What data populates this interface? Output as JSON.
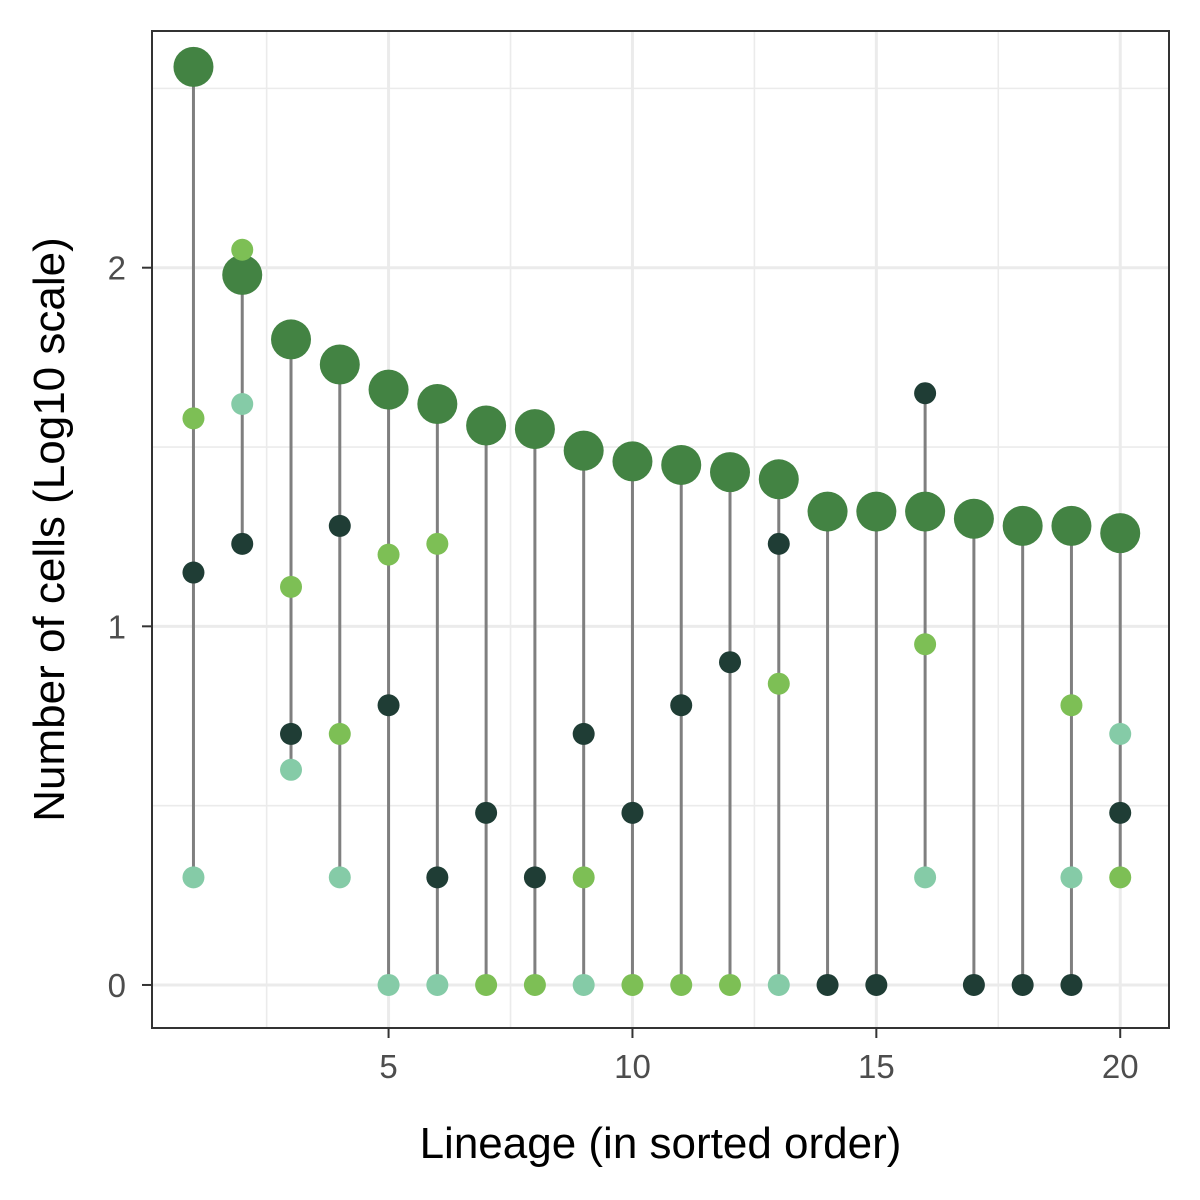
{
  "chart_data": {
    "type": "scatter",
    "xlabel": "Lineage (in sorted order)",
    "ylabel": "Number of cells (Log10 scale)",
    "xlim": [
      0.15,
      21.0
    ],
    "ylim": [
      -0.12,
      2.66
    ],
    "x_ticks": [
      5,
      10,
      15,
      20
    ],
    "y_ticks": [
      0,
      1,
      2
    ],
    "grid": true,
    "legend": "none",
    "x": [
      1,
      2,
      3,
      4,
      5,
      6,
      7,
      8,
      9,
      10,
      11,
      12,
      13,
      14,
      15,
      16,
      17,
      18,
      19,
      20
    ],
    "series": [
      {
        "role": "total",
        "color": "#438343",
        "values": [
          2.56,
          1.98,
          1.8,
          1.73,
          1.66,
          1.62,
          1.56,
          1.55,
          1.49,
          1.46,
          1.45,
          1.43,
          1.41,
          1.32,
          1.32,
          1.32,
          1.3,
          1.28,
          1.28,
          1.26
        ]
      },
      {
        "role": "component-light-green",
        "color": "#7dbf55",
        "values": [
          1.58,
          2.05,
          1.11,
          0.7,
          1.2,
          1.23,
          0.0,
          0.0,
          0.3,
          0.0,
          0.0,
          0.0,
          0.84,
          null,
          null,
          0.95,
          null,
          null,
          0.78,
          0.3
        ]
      },
      {
        "role": "component-mint",
        "color": "#85cba7",
        "values": [
          0.3,
          1.62,
          0.6,
          0.3,
          0.0,
          0.0,
          null,
          null,
          0.0,
          null,
          null,
          null,
          0.0,
          null,
          null,
          0.3,
          null,
          null,
          0.3,
          0.7
        ]
      },
      {
        "role": "component-dark",
        "color": "#1f3d35",
        "values": [
          1.15,
          1.23,
          0.7,
          1.28,
          0.78,
          0.3,
          0.48,
          0.3,
          0.7,
          0.48,
          0.78,
          0.9,
          1.23,
          0.0,
          0.0,
          1.65,
          0.0,
          0.0,
          0.0,
          0.48
        ]
      }
    ]
  },
  "colors": {
    "stem": "#7f7f7f",
    "grid": "#ebebeb",
    "panel_border": "#333333",
    "tick_text": "#4d4d4d"
  }
}
